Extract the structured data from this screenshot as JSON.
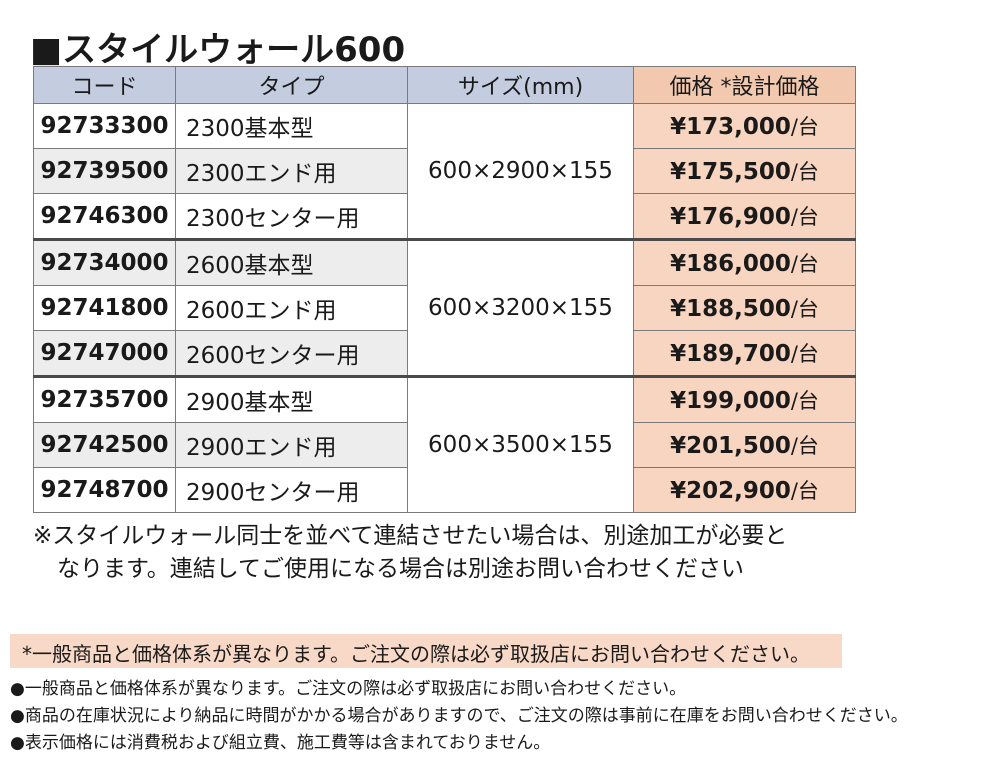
{
  "title": "■スタイルウォール600",
  "table": {
    "headers": {
      "code": "コード",
      "type": "タイプ",
      "size": "サイズ(mm)",
      "price": "価格 *設計価格"
    },
    "price_unit": "/台",
    "groups": [
      {
        "size": "600×2900×155",
        "rows": [
          {
            "code": "92733300",
            "type": "2300基本型",
            "price": "¥173,000"
          },
          {
            "code": "92739500",
            "type": "2300エンド用",
            "price": "¥175,500"
          },
          {
            "code": "92746300",
            "type": "2300センター用",
            "price": "¥176,900"
          }
        ]
      },
      {
        "size": "600×3200×155",
        "rows": [
          {
            "code": "92734000",
            "type": "2600基本型",
            "price": "¥186,000"
          },
          {
            "code": "92741800",
            "type": "2600エンド用",
            "price": "¥188,500"
          },
          {
            "code": "92747000",
            "type": "2600センター用",
            "price": "¥189,700"
          }
        ]
      },
      {
        "size": "600×3500×155",
        "rows": [
          {
            "code": "92735700",
            "type": "2900基本型",
            "price": "¥199,000"
          },
          {
            "code": "92742500",
            "type": "2900エンド用",
            "price": "¥201,500"
          },
          {
            "code": "92748700",
            "type": "2900センター用",
            "price": "¥202,900"
          }
        ]
      }
    ]
  },
  "note": {
    "line1": "※スタイルウォール同士を並べて連結させたい場合は、別途加工が必要と",
    "line2": "なります。連結してご使用になる場合は別途お問い合わせください"
  },
  "pink_note": "*一般商品と価格体系が異なります。ご注文の際は必ず取扱店にお問い合わせください。",
  "bullets": [
    "●一般商品と価格体系が異なります。ご注文の際は必ず取扱店にお問い合わせください。",
    "●商品の在庫状況により納品に時間がかかる場合がありますので、ご注文の際は事前に在庫をお問い合わせください。",
    "●表示価格には消費税および組立費、施工費等は含まれておりません。"
  ],
  "colors": {
    "header_blue": "#c4cde0",
    "header_price": "#f2c9ae",
    "price_cell": "#f8d5c0",
    "gray_row": "#ededed"
  }
}
